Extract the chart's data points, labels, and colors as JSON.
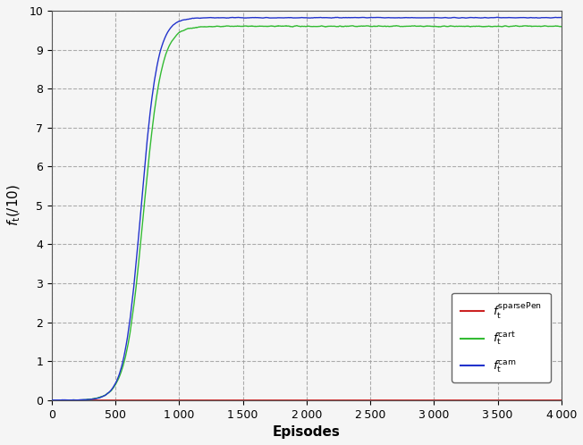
{
  "xlabel": "Episodes",
  "ylabel": "$f_{\\mathrm{t}}(/10)$",
  "xlim": [
    0,
    4000
  ],
  "ylim": [
    0,
    10
  ],
  "xticks": [
    0,
    500,
    1000,
    1500,
    2000,
    2500,
    3000,
    3500,
    4000
  ],
  "yticks": [
    0,
    1,
    2,
    3,
    4,
    5,
    6,
    7,
    8,
    9,
    10
  ],
  "grid_color": "#999999",
  "line_sparsePen_color": "#cc2222",
  "line_cart_color": "#33bb33",
  "line_cam_color": "#2233cc",
  "background_color": "#f5f5f5",
  "figsize": [
    6.52,
    4.98
  ],
  "dpi": 100,
  "legend_labels": [
    "$f_{\\mathrm{t}}^{\\mathrm{sparsePen}}$",
    "$f_{\\mathrm{t}}^{\\mathrm{cart}}$",
    "$f_{\\mathrm{t}}^{\\mathrm{cam}}$"
  ]
}
